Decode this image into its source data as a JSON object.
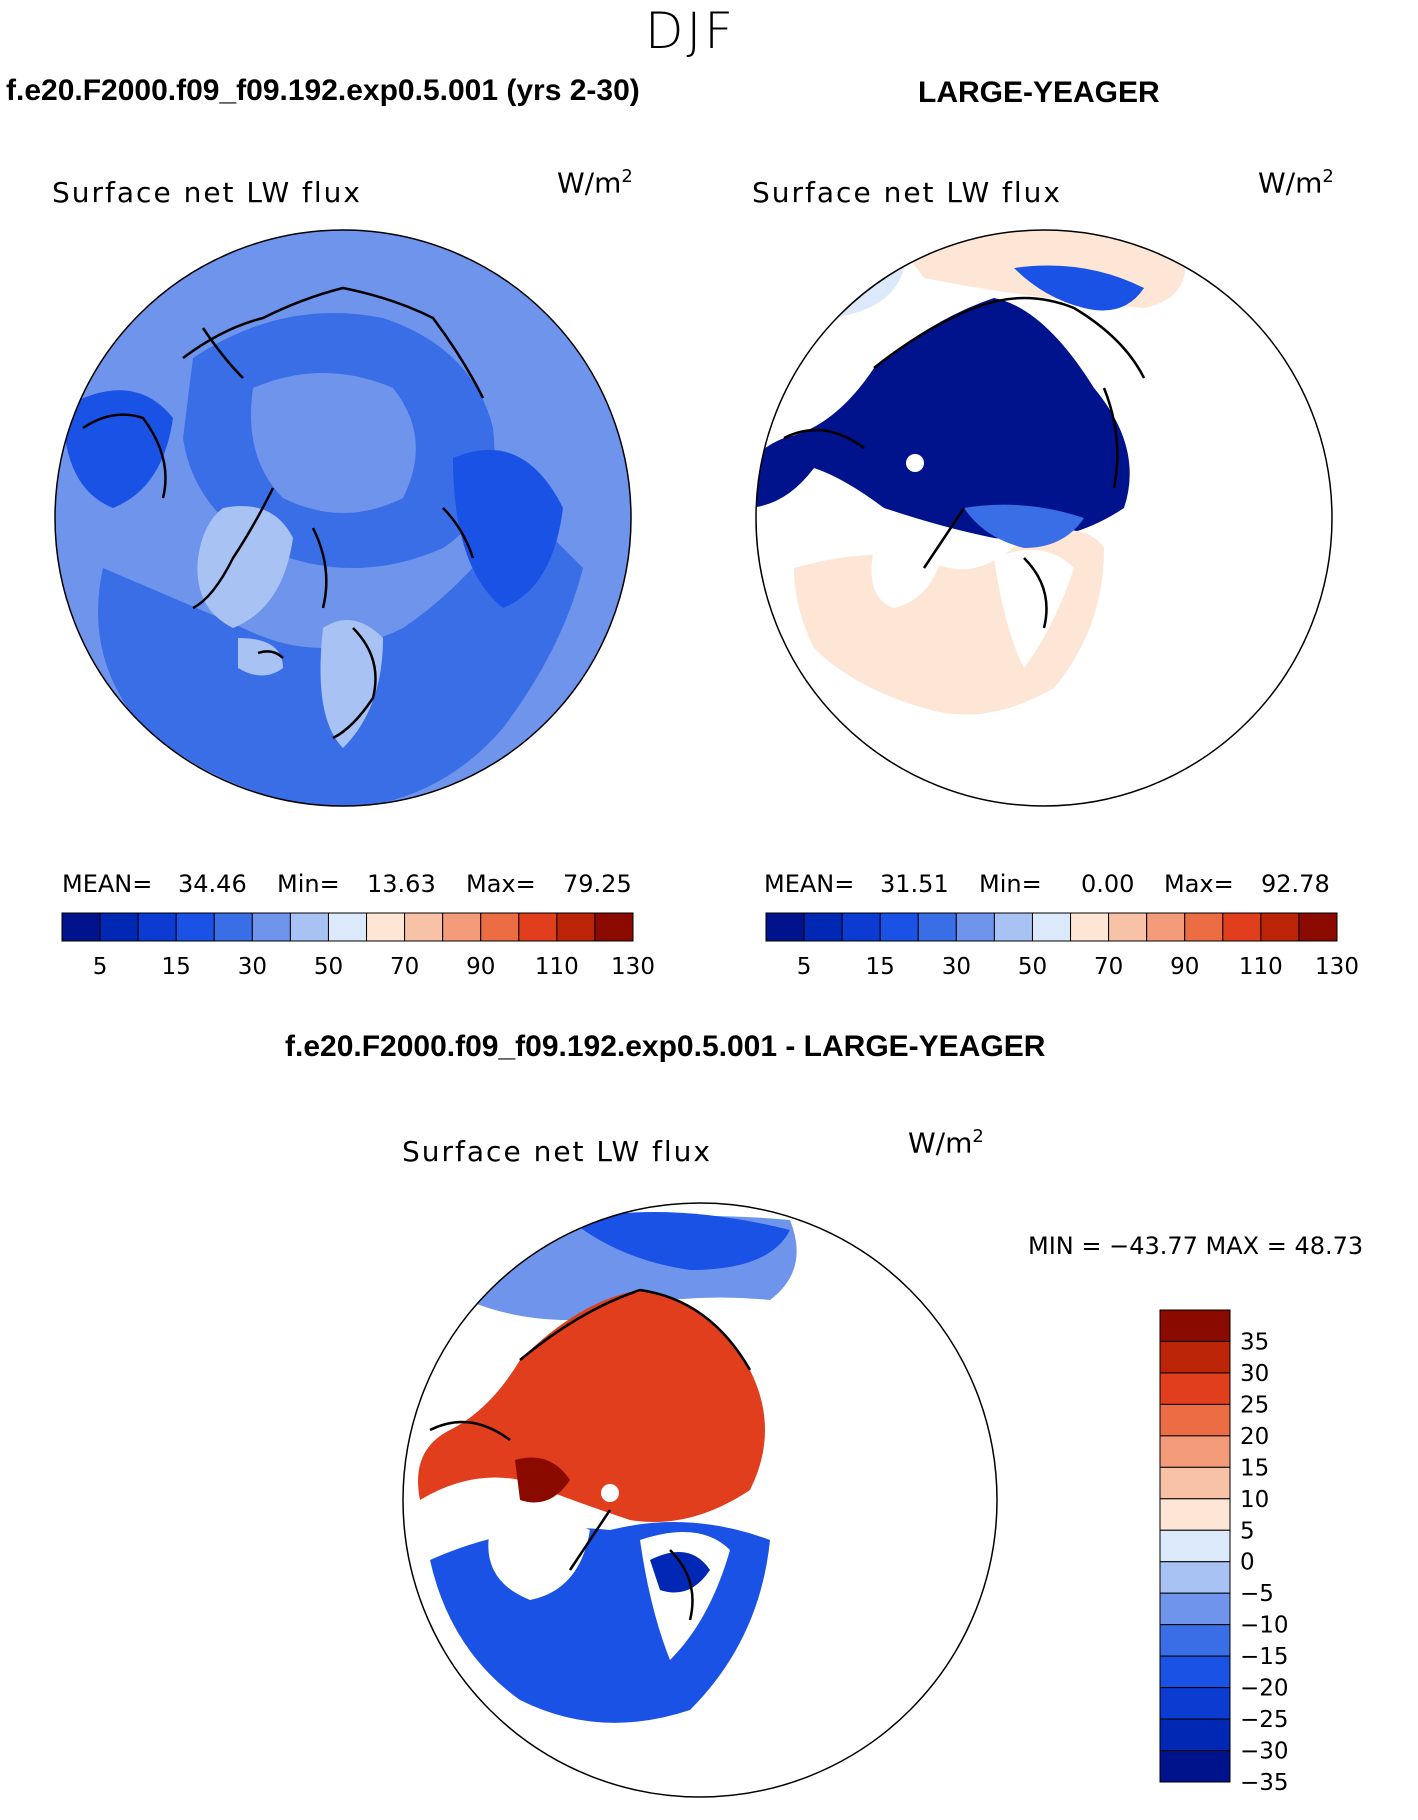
{
  "season": "DJF",
  "case_title": "f.e20.F2000.f09_f09.192.exp0.5.001 (yrs 2-30)",
  "obs_title": "LARGE-YEAGER",
  "diff_title": "f.e20.F2000.f09_f09.192.exp0.5.001 - LARGE-YEAGER",
  "panels": [
    {
      "variable": "Surface net LW flux",
      "units": "W/m",
      "units_exp": "2",
      "stats": {
        "mean_label": "MEAN=",
        "mean": "34.46",
        "min_label": "Min=",
        "min": "13.63",
        "max_label": "Max=",
        "max": "79.25"
      }
    },
    {
      "variable": "Surface net LW flux",
      "units": "W/m",
      "units_exp": "2",
      "stats": {
        "mean_label": "MEAN=",
        "mean": "31.51",
        "min_label": "Min=",
        "min": "0.00",
        "max_label": "Max=",
        "max": "92.78"
      }
    },
    {
      "variable": "Surface net LW flux",
      "units": "W/m",
      "units_exp": "2",
      "stats_text": "MIN = −43.77 MAX =   48.73"
    }
  ],
  "abs_colorbar": {
    "colors": [
      "#00138c",
      "#0028b4",
      "#0c3bd2",
      "#1a52e6",
      "#3a6ee6",
      "#6e94ec",
      "#a8c2f4",
      "#dbe9fb",
      "#fde6d6",
      "#f8c2a6",
      "#f39a78",
      "#ec6c44",
      "#e03e1c",
      "#bc2408",
      "#8a0a00"
    ],
    "labels": [
      "5",
      "15",
      "30",
      "50",
      "70",
      "90",
      "110",
      "130"
    ]
  },
  "diff_colorbar": {
    "colors": [
      "#8a0a00",
      "#bc2408",
      "#e03e1c",
      "#ec6c44",
      "#f39a78",
      "#f8c2a6",
      "#fde6d6",
      "#dbe9fb",
      "#a8c2f4",
      "#6e94ec",
      "#3a6ee6",
      "#1a52e6",
      "#0c3bd2",
      "#0028b4",
      "#00138c"
    ],
    "labels": [
      "35",
      "30",
      "25",
      "20",
      "15",
      "10",
      "5",
      "0",
      "−5",
      "−10",
      "−15",
      "−20",
      "−25",
      "−30",
      "−35"
    ]
  }
}
